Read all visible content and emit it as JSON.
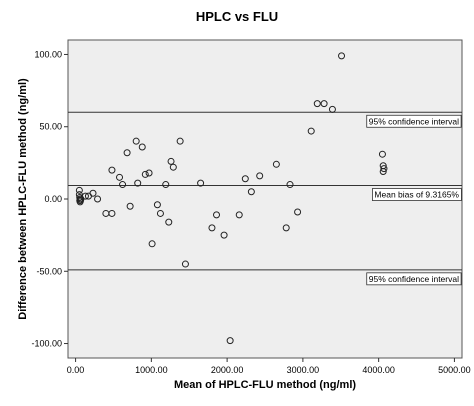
{
  "chart_data": {
    "type": "scatter",
    "title": "HPLC vs FLU",
    "xlabel": "Mean of HPLC-FLU method (ng/ml)",
    "ylabel": "Difference between HPLC-FLU method (ng/ml)",
    "xlim": [
      -100,
      5100
    ],
    "ylim": [
      -110,
      110
    ],
    "xticks": [
      0,
      1000,
      2000,
      3000,
      4000,
      5000
    ],
    "xtick_labels": [
      "0.00",
      "1000.00",
      "2000.00",
      "3000.00",
      "4000.00",
      "5000.00"
    ],
    "yticks": [
      100,
      50,
      0,
      -50,
      -100
    ],
    "ytick_labels": [
      "100.00",
      "50.00",
      "0.00",
      "-50.00",
      "-100.00"
    ],
    "grid": false,
    "plot_background": "#eeeeee",
    "reference_lines": [
      {
        "y": 60,
        "label": "95% confidence interval"
      },
      {
        "y": 9.3165,
        "label": "Mean bias of 9.3165%"
      },
      {
        "y": -49,
        "label": "95% confidence interval"
      }
    ],
    "points": [
      {
        "x": 50,
        "y": 6
      },
      {
        "x": 50,
        "y": 3
      },
      {
        "x": 55,
        "y": 1
      },
      {
        "x": 60,
        "y": 0
      },
      {
        "x": 55,
        "y": -1
      },
      {
        "x": 60,
        "y": -2
      },
      {
        "x": 65,
        "y": -1
      },
      {
        "x": 70,
        "y": 0
      },
      {
        "x": 130,
        "y": 2
      },
      {
        "x": 170,
        "y": 2
      },
      {
        "x": 230,
        "y": 4
      },
      {
        "x": 290,
        "y": 0
      },
      {
        "x": 400,
        "y": -10
      },
      {
        "x": 480,
        "y": -10
      },
      {
        "x": 480,
        "y": 20
      },
      {
        "x": 580,
        "y": 15
      },
      {
        "x": 620,
        "y": 10
      },
      {
        "x": 680,
        "y": 32
      },
      {
        "x": 720,
        "y": -5
      },
      {
        "x": 800,
        "y": 40
      },
      {
        "x": 820,
        "y": 11
      },
      {
        "x": 880,
        "y": 36
      },
      {
        "x": 920,
        "y": 17
      },
      {
        "x": 970,
        "y": 18
      },
      {
        "x": 1010,
        "y": -31
      },
      {
        "x": 1080,
        "y": -4
      },
      {
        "x": 1120,
        "y": -10
      },
      {
        "x": 1190,
        "y": 10
      },
      {
        "x": 1230,
        "y": -16
      },
      {
        "x": 1260,
        "y": 26
      },
      {
        "x": 1290,
        "y": 22
      },
      {
        "x": 1380,
        "y": 40
      },
      {
        "x": 1450,
        "y": -45
      },
      {
        "x": 1650,
        "y": 11
      },
      {
        "x": 1800,
        "y": -20
      },
      {
        "x": 1860,
        "y": -11
      },
      {
        "x": 1960,
        "y": -25
      },
      {
        "x": 2040,
        "y": -98
      },
      {
        "x": 2160,
        "y": -11
      },
      {
        "x": 2240,
        "y": 14
      },
      {
        "x": 2320,
        "y": 5
      },
      {
        "x": 2430,
        "y": 16
      },
      {
        "x": 2650,
        "y": 24
      },
      {
        "x": 2780,
        "y": -20
      },
      {
        "x": 2830,
        "y": 10
      },
      {
        "x": 2930,
        "y": -9
      },
      {
        "x": 3110,
        "y": 47
      },
      {
        "x": 3190,
        "y": 66
      },
      {
        "x": 3280,
        "y": 66
      },
      {
        "x": 3390,
        "y": 62
      },
      {
        "x": 3510,
        "y": 99
      },
      {
        "x": 4050,
        "y": 31
      },
      {
        "x": 4060,
        "y": 23
      },
      {
        "x": 4060,
        "y": 19
      },
      {
        "x": 4070,
        "y": 21
      }
    ]
  }
}
